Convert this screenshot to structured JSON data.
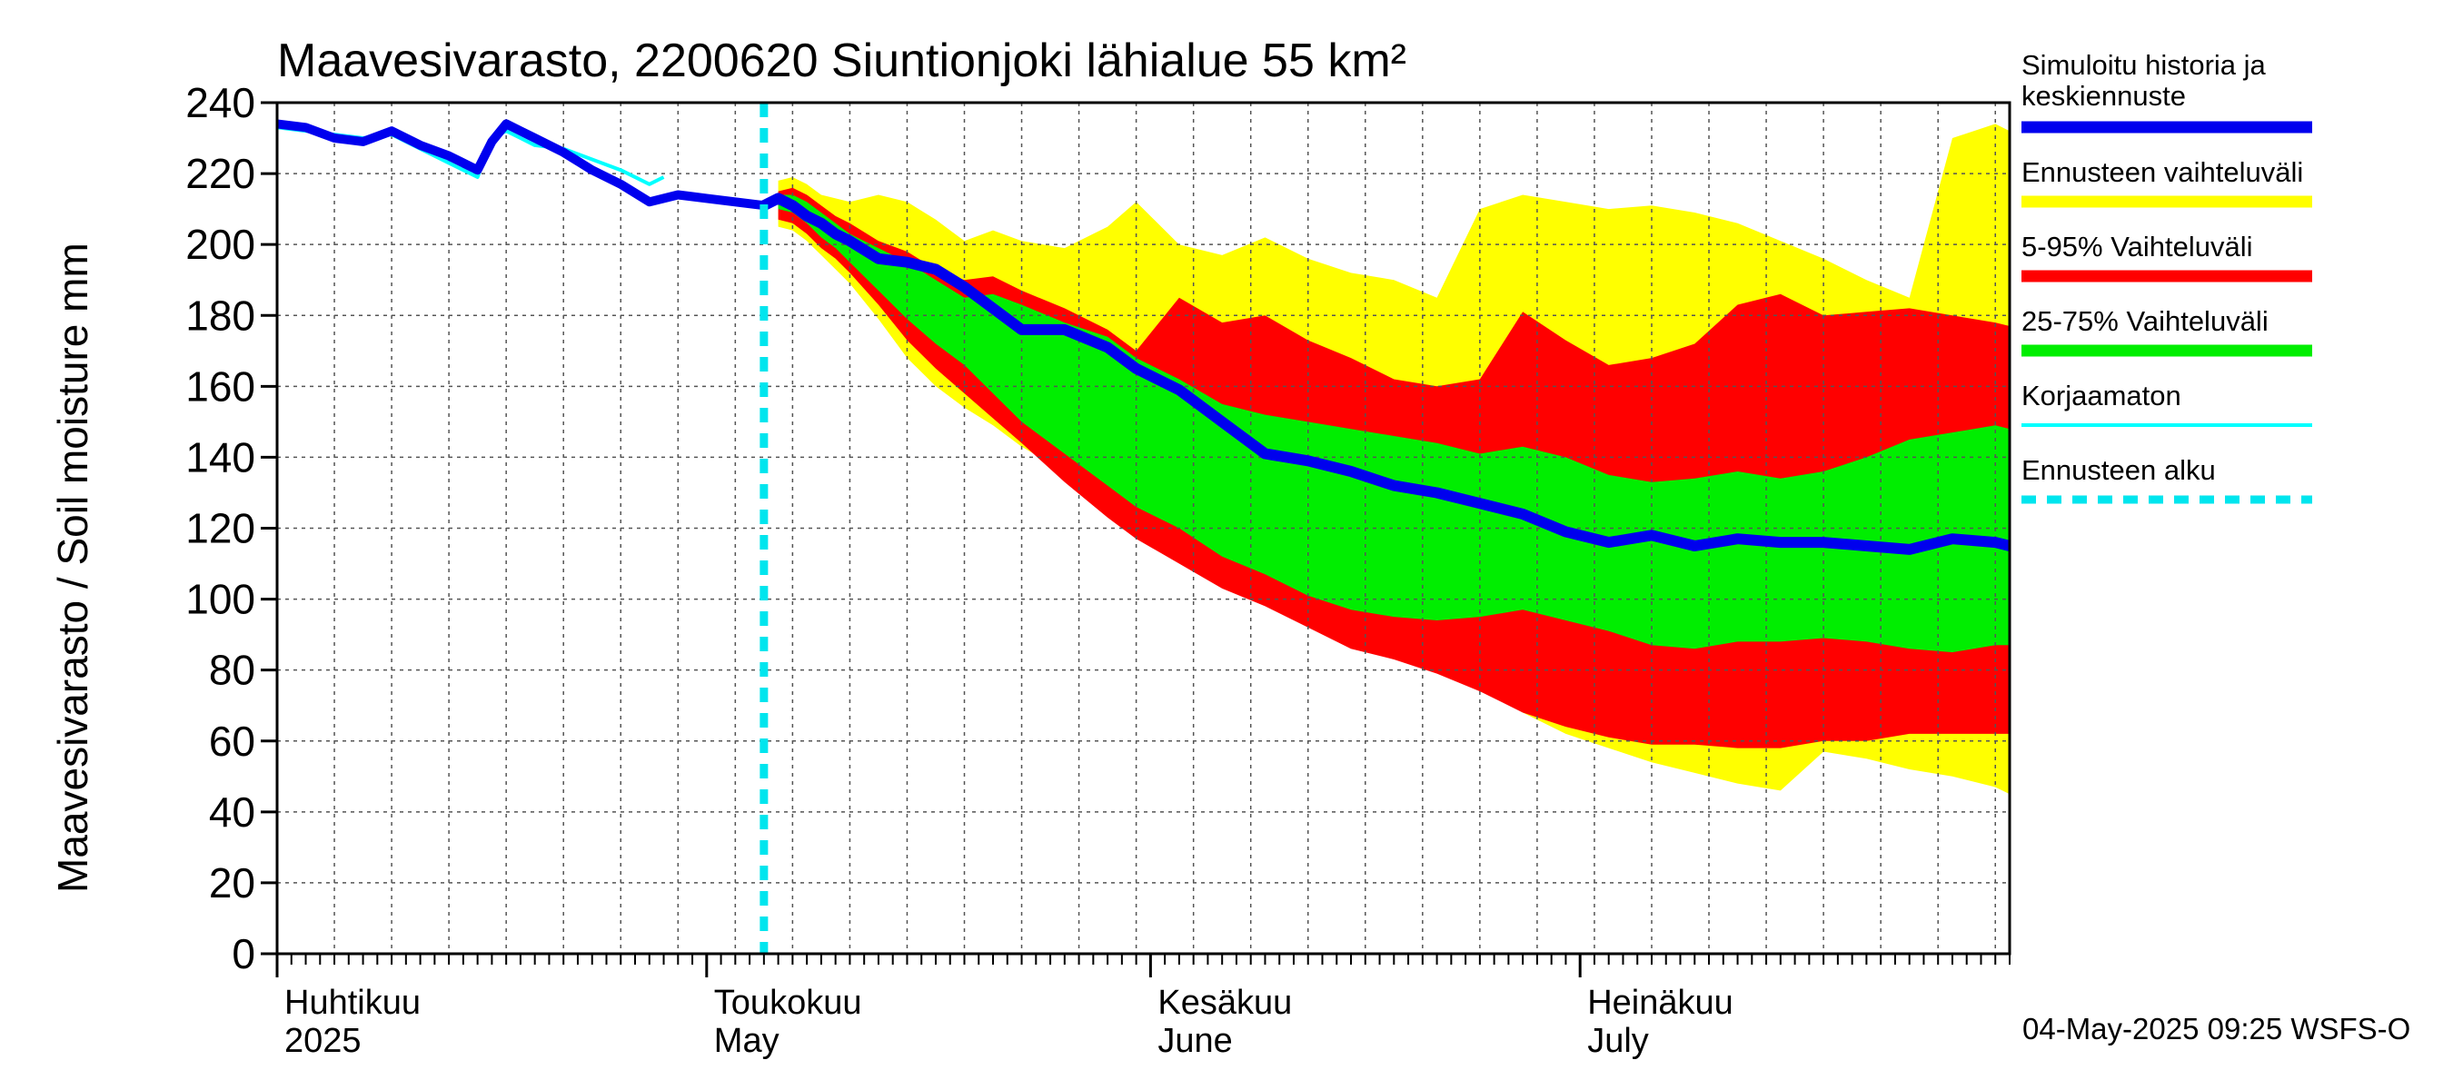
{
  "chart_data": {
    "type": "area",
    "title": "Maavesivarasto, 2200620 Siuntionjoki lähialue 55 km²",
    "ylabel": "Maavesivarasto / Soil moisture   mm",
    "xlabel": "",
    "ylim": [
      0,
      240
    ],
    "yticks": [
      "0",
      "20",
      "40",
      "60",
      "80",
      "100",
      "120",
      "140",
      "160",
      "180",
      "200",
      "220",
      "240"
    ],
    "x_day_range": [
      0,
      121
    ],
    "forecast_start_day": 34,
    "months": [
      {
        "fi": "Huhtikuu",
        "en": "2025",
        "day": 0
      },
      {
        "fi": "Toukokuu",
        "en": "May",
        "day": 30
      },
      {
        "fi": "Kesäkuu",
        "en": "June",
        "day": 61
      },
      {
        "fi": "Heinäkuu",
        "en": "July",
        "day": 91
      }
    ],
    "days": [
      35,
      36,
      37,
      38,
      39,
      40,
      42,
      44,
      46,
      48,
      50,
      52,
      55,
      58,
      60,
      63,
      66,
      69,
      72,
      75,
      78,
      81,
      84,
      87,
      90,
      93,
      96,
      99,
      102,
      105,
      108,
      111,
      114,
      117,
      120,
      121
    ],
    "series": [
      {
        "name": "Ennusteen vaihteluväli",
        "color": "#ffff00",
        "low": [
          205,
          204,
          201,
          197,
          193,
          189,
          179,
          168,
          160,
          154,
          149,
          143,
          136,
          128,
          123,
          117,
          110,
          104,
          96,
          88,
          84,
          81,
          75,
          68,
          62,
          58,
          54,
          51,
          48,
          46,
          57,
          55,
          52,
          50,
          47,
          45
        ],
        "high": [
          218,
          219,
          217,
          214,
          213,
          212,
          214,
          212,
          207,
          201,
          204,
          201,
          199,
          205,
          212,
          200,
          197,
          202,
          196,
          192,
          190,
          185,
          210,
          214,
          212,
          210,
          211,
          209,
          206,
          201,
          196,
          190,
          185,
          230,
          234,
          232
        ]
      },
      {
        "name": "5-95% Vaihteluväli",
        "color": "#ff0000",
        "low": [
          207,
          206,
          203,
          199,
          196,
          192,
          183,
          173,
          165,
          158,
          151,
          144,
          133,
          123,
          117,
          110,
          103,
          98,
          92,
          86,
          83,
          79,
          74,
          68,
          64,
          61,
          59,
          59,
          58,
          58,
          60,
          60,
          62,
          62,
          62,
          62
        ],
        "high": [
          215,
          216,
          214,
          211,
          208,
          206,
          201,
          198,
          193,
          190,
          191,
          187,
          182,
          176,
          170,
          185,
          178,
          180,
          173,
          168,
          162,
          160,
          162,
          181,
          173,
          166,
          168,
          172,
          183,
          186,
          180,
          181,
          182,
          180,
          178,
          177
        ]
      },
      {
        "name": "25-75% Vaihteluväli",
        "color": "#00ee00",
        "low": [
          210,
          209,
          206,
          202,
          199,
          195,
          187,
          179,
          172,
          166,
          158,
          150,
          141,
          132,
          126,
          120,
          112,
          107,
          101,
          97,
          95,
          94,
          95,
          97,
          94,
          91,
          87,
          86,
          88,
          88,
          89,
          88,
          86,
          85,
          87,
          87
        ],
        "high": [
          214,
          214,
          212,
          209,
          206,
          203,
          199,
          195,
          190,
          185,
          186,
          183,
          178,
          174,
          168,
          162,
          155,
          152,
          150,
          148,
          146,
          144,
          141,
          143,
          140,
          135,
          133,
          134,
          136,
          134,
          136,
          140,
          145,
          147,
          149,
          148
        ]
      }
    ],
    "simulated_history": {
      "name": "Simuloitu historia ja keskiennuste",
      "color": "#0000ee",
      "days": [
        0,
        2,
        4,
        6,
        8,
        10,
        12,
        14,
        15,
        16,
        17,
        18,
        20,
        22,
        24,
        26,
        28,
        30,
        32,
        34
      ],
      "values": [
        234,
        233,
        230,
        229,
        232,
        228,
        225,
        221,
        229,
        234,
        232,
        230,
        226,
        221,
        217,
        212,
        214,
        213,
        212,
        211
      ]
    },
    "mean_forecast": {
      "days": [
        34,
        35,
        36,
        37,
        38,
        39,
        40,
        42,
        44,
        46,
        48,
        50,
        52,
        55,
        58,
        60,
        63,
        66,
        69,
        72,
        75,
        78,
        81,
        84,
        87,
        90,
        93,
        96,
        99,
        102,
        105,
        108,
        111,
        114,
        117,
        120,
        121
      ],
      "values": [
        211,
        213,
        211,
        208,
        206,
        203,
        201,
        196,
        195,
        193,
        188,
        182,
        176,
        176,
        171,
        165,
        159,
        150,
        141,
        139,
        136,
        132,
        130,
        127,
        124,
        119,
        116,
        118,
        115,
        117,
        116,
        116,
        115,
        114,
        117,
        116,
        115
      ]
    },
    "uncorrected": {
      "name": "Korjaamaton",
      "color": "#00ffff",
      "days": [
        0,
        2,
        4,
        6,
        8,
        10,
        12,
        14,
        15,
        16,
        17,
        18,
        20,
        22,
        24,
        26,
        27
      ],
      "values": [
        233,
        232,
        231,
        230,
        231,
        227,
        223,
        219,
        230,
        232,
        230,
        228,
        227,
        224,
        221,
        217,
        219
      ]
    },
    "legend": [
      {
        "label": "Simuloitu historia ja",
        "label2": "keskiennuste",
        "color": "#0000ee",
        "style": "thick"
      },
      {
        "label": "Ennusteen vaihteluväli",
        "color": "#ffff00",
        "style": "thick"
      },
      {
        "label": "5-95% Vaihteluväli",
        "color": "#ff0000",
        "style": "thick"
      },
      {
        "label": "25-75% Vaihteluväli",
        "color": "#00ee00",
        "style": "thick"
      },
      {
        "label": "Korjaamaton",
        "color": "#00ffff",
        "style": "thin"
      },
      {
        "label": "Ennusteen alku",
        "color": "#00e5ee",
        "style": "dashed"
      }
    ],
    "legend_position": "right",
    "grid": true
  },
  "timestamp": "04-May-2025 09:25 WSFS-O"
}
